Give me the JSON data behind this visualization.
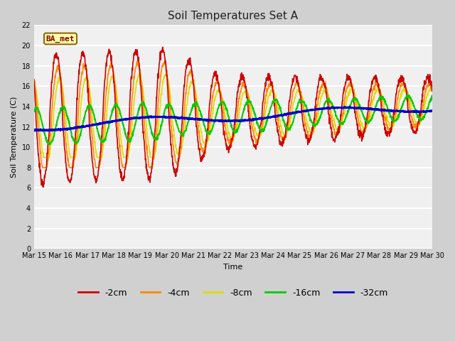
{
  "title": "Soil Temperatures Set A",
  "xlabel": "Time",
  "ylabel": "Soil Temperature (C)",
  "annotation": "BA_met",
  "ylim": [
    0,
    22
  ],
  "yticks": [
    0,
    2,
    4,
    6,
    8,
    10,
    12,
    14,
    16,
    18,
    20,
    22
  ],
  "xtick_labels": [
    "Mar 15",
    "Mar 16",
    "Mar 17",
    "Mar 18",
    "Mar 19",
    "Mar 20",
    "Mar 21",
    "Mar 22",
    "Mar 23",
    "Mar 24",
    "Mar 25",
    "Mar 26",
    "Mar 27",
    "Mar 28",
    "Mar 29",
    "Mar 30"
  ],
  "series": {
    "-2cm": {
      "color": "#cc0000",
      "lw": 1.2
    },
    "-4cm": {
      "color": "#ff8800",
      "lw": 1.2
    },
    "-8cm": {
      "color": "#dddd00",
      "lw": 1.2
    },
    "-16cm": {
      "color": "#00cc00",
      "lw": 1.5
    },
    "-32cm": {
      "color": "#0000cc",
      "lw": 2.0
    }
  },
  "legend_labels": [
    "-2cm",
    "-4cm",
    "-8cm",
    "-16cm",
    "-32cm"
  ],
  "legend_colors": [
    "#cc0000",
    "#ff8800",
    "#dddd00",
    "#00cc00",
    "#0000cc"
  ],
  "fig_bg": "#d0d0d0",
  "plot_bg": "#f0f0f0",
  "grid_color": "#ffffff"
}
